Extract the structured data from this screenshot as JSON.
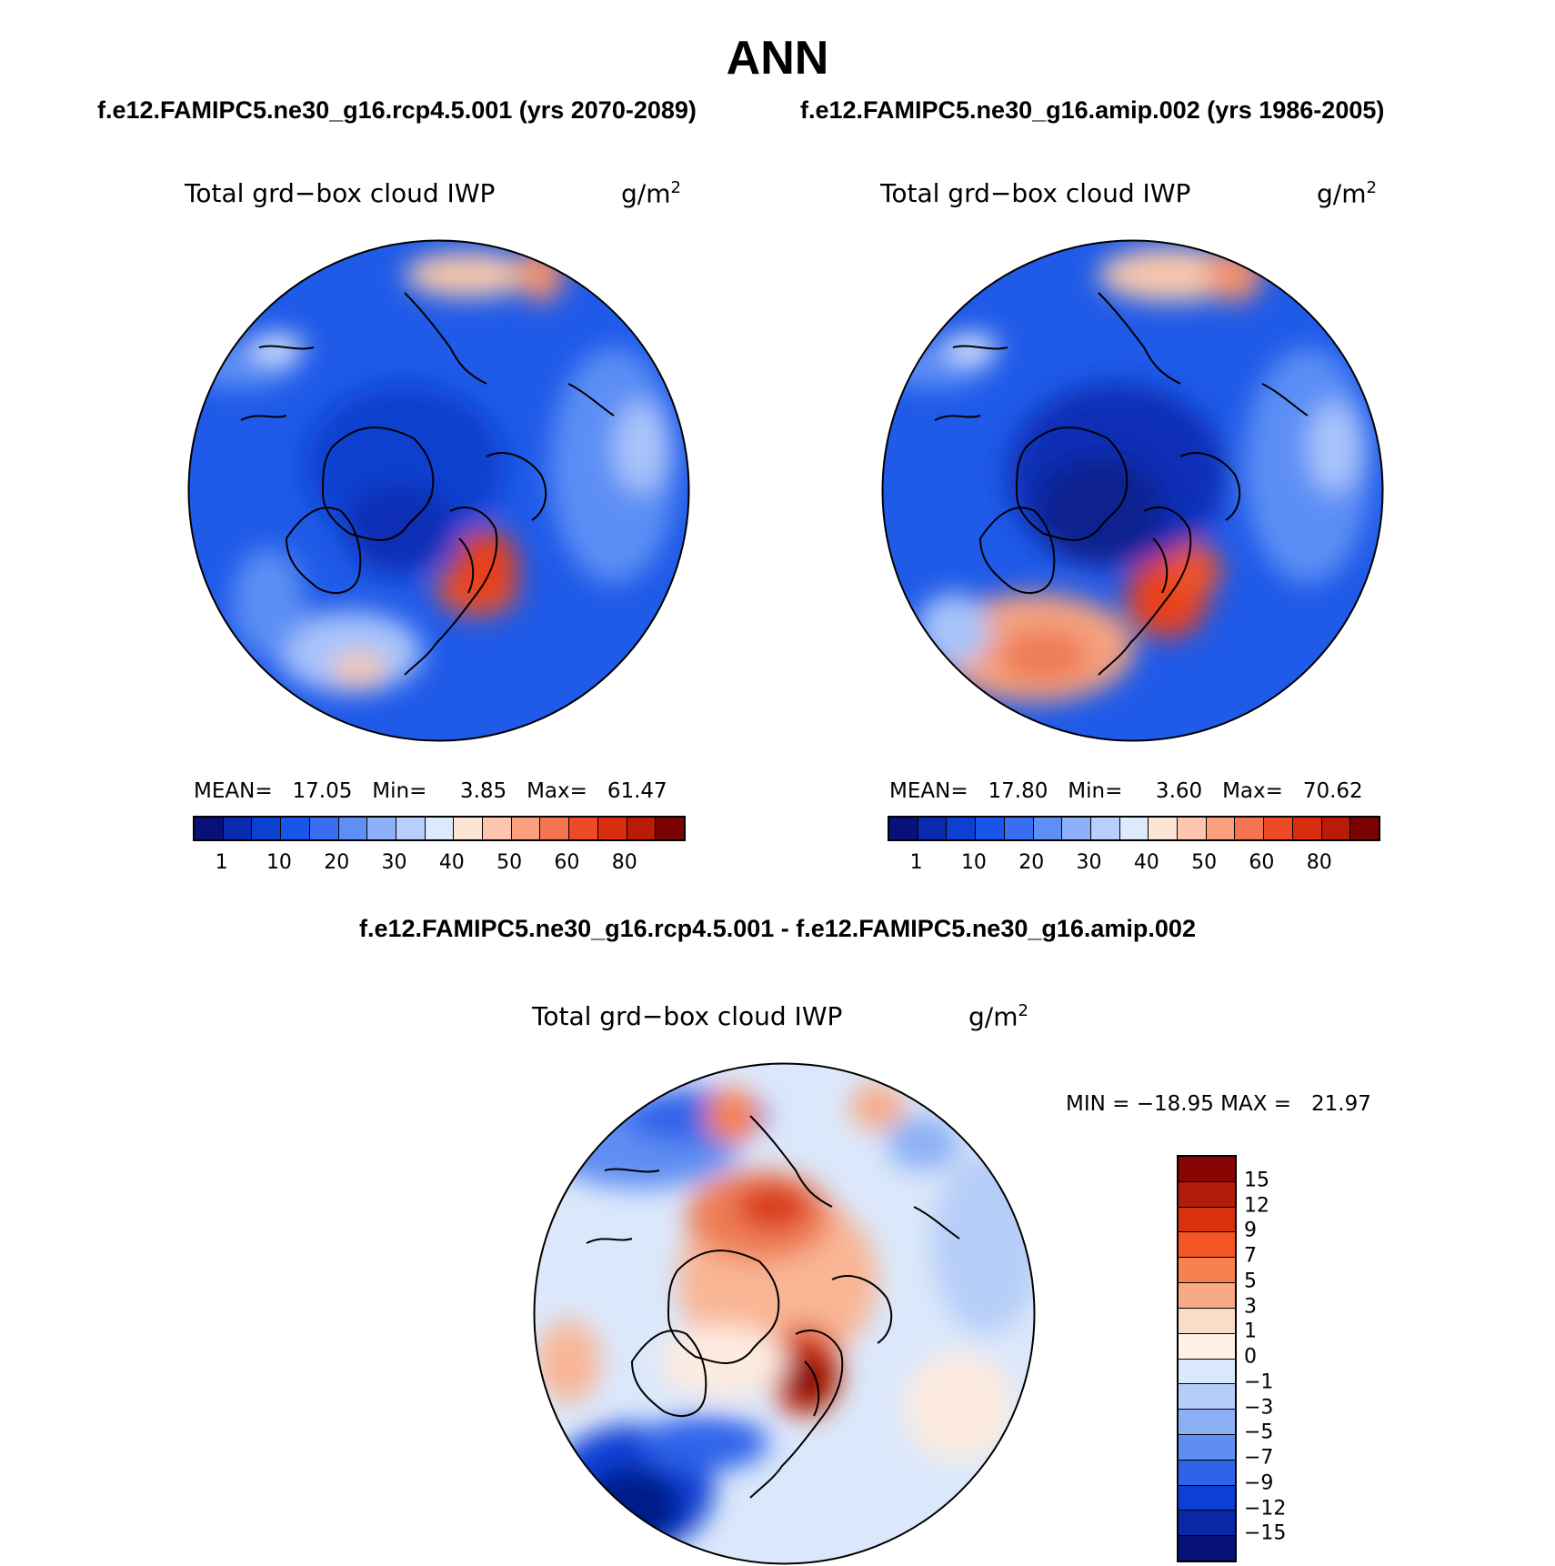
{
  "header": {
    "title": "ANN",
    "case1": "f.e12.FAMIPC5.ne30_g16.rcp4.5.001 (yrs 2070-2089)",
    "case2": "f.e12.FAMIPC5.ne30_g16.amip.002 (yrs 1986-2005)"
  },
  "panels": [
    {
      "variable": "Total grd−box cloud IWP",
      "unit_base": "g/m",
      "unit_exp": "2",
      "stats": "MEAN=   17.05   Min=     3.85   Max=   61.47",
      "mean": 17.05,
      "min": 3.85,
      "max": 61.47
    },
    {
      "variable": "Total grd−box cloud IWP",
      "unit_base": "g/m",
      "unit_exp": "2",
      "stats": "MEAN=   17.80   Min=     3.60   Max=   70.62",
      "mean": 17.8,
      "min": 3.6,
      "max": 70.62
    }
  ],
  "difference": {
    "title": "f.e12.FAMIPC5.ne30_g16.rcp4.5.001 - f.e12.FAMIPC5.ne30_g16.amip.002",
    "variable": "Total grd−box cloud IWP",
    "unit_base": "g/m",
    "unit_exp": "2",
    "minmax": "MIN = −18.95 MAX =   21.97",
    "min": -18.95,
    "max": 21.97
  },
  "colorbar_main": {
    "colors": [
      "#08107a",
      "#0a2bb0",
      "#0b40d0",
      "#1a55ea",
      "#3a6ef2",
      "#5f8ef5",
      "#8db0f8",
      "#b8cffb",
      "#dde9fc",
      "#fde5d6",
      "#fcc6ad",
      "#faa07e",
      "#f57550",
      "#ee4a25",
      "#d92d10",
      "#b81c08",
      "#7a0303"
    ],
    "tick_labels": [
      "1",
      "10",
      "20",
      "30",
      "40",
      "50",
      "60",
      "80"
    ]
  },
  "colorbar_diff": {
    "colors": [
      "#880404",
      "#b01d08",
      "#d8320f",
      "#f55522",
      "#f7814f",
      "#f9a984",
      "#fbdcc8",
      "#fdf1e8",
      "#dae8fb",
      "#b6cdf8",
      "#8cb0f5",
      "#5f8ef3",
      "#2e63ea",
      "#0c3fd6",
      "#0828a8",
      "#061276"
    ],
    "tick_labels": [
      "15",
      "12",
      "9",
      "7",
      "5",
      "3",
      "1",
      "0",
      "−1",
      "−3",
      "−5",
      "−7",
      "−9",
      "−12",
      "−15"
    ]
  },
  "chart_data": {
    "type": "heatmap",
    "projection": "north polar stereographic",
    "season": "ANN",
    "maps": [
      {
        "label": "f.e12.FAMIPC5.ne30_g16.rcp4.5.001 (yrs 2070-2089)",
        "mean": 17.05,
        "min": 3.85,
        "max": 61.47
      },
      {
        "label": "f.e12.FAMIPC5.ne30_g16.amip.002 (yrs 1986-2005)",
        "mean": 17.8,
        "min": 3.6,
        "max": 70.62
      },
      {
        "label": "f.e12.FAMIPC5.ne30_g16.rcp4.5.001 - f.e12.FAMIPC5.ne30_g16.amip.002",
        "min": -18.95,
        "max": 21.97
      }
    ]
  }
}
